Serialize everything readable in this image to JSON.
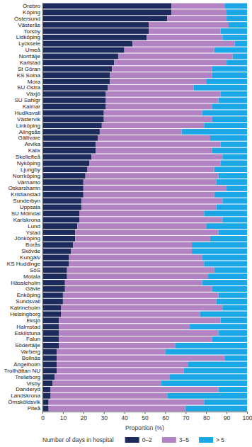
{
  "chart_data": {
    "type": "bar",
    "orientation": "horizontal",
    "stacked": true,
    "grid": false,
    "legend": "bottom",
    "x_label": "Proportion (%)",
    "legend_title": "Number of days in hospital",
    "xlim": [
      0,
      100
    ],
    "xticks": [
      0,
      10,
      20,
      30,
      40,
      50,
      60,
      70,
      80,
      90,
      100
    ],
    "categories": [
      "Örebro",
      "Köping",
      "Östersund",
      "Västerås",
      "Torsby",
      "Lidköping",
      "Lycksele",
      "Umeå",
      "Norrtälje",
      "Karlstad",
      "St Göran",
      "KS Solna",
      "Mora",
      "SU Östra",
      "Växjö",
      "SU Sahlgr",
      "Kalmar",
      "Hudiksvall",
      "Västervik",
      "Linköping",
      "Alingsås",
      "Gällivare",
      "Arvika",
      "Kalix",
      "Skellefteå",
      "Nyköping",
      "Ljungby",
      "Norrköping",
      "Värnamo",
      "Oskarshamn",
      "Kristianstad",
      "Sunderbyn",
      "Uppsala",
      "SU Mölndal",
      "Karlskrona",
      "Lund",
      "Ystad",
      "Jönköping",
      "Borås",
      "Skövde",
      "Kungälv",
      "KS Huddinge",
      "SöS",
      "Motala",
      "Hässleholm",
      "Gävle",
      "Enköping",
      "Sundsvall",
      "Katrineholm",
      "Helsingborg",
      "Eksjö",
      "Halmstad",
      "Eskilstuna",
      "Falun",
      "Södertälje",
      "Varberg",
      "Bollnäs",
      "Ängelholm",
      "Trollhättan NU",
      "Trelleborg",
      "Visby",
      "Danderyd",
      "Landskrona",
      "Örnsköldsvik",
      "Piteå"
    ],
    "series": [
      {
        "name": "0–2",
        "color": "#1d2b5c",
        "values": [
          63,
          63,
          61,
          52,
          52,
          51,
          44,
          40,
          37,
          35,
          34,
          33,
          33,
          32,
          31,
          31,
          31,
          30,
          30,
          29,
          28,
          27,
          26,
          26,
          24,
          23,
          22,
          21,
          20,
          20,
          20,
          19,
          19,
          18,
          18,
          17,
          16,
          16,
          15,
          14,
          13,
          13,
          12,
          12,
          11,
          11,
          10,
          10,
          9,
          9,
          8,
          8,
          8,
          8,
          8,
          7,
          7,
          7,
          7,
          6,
          5,
          4,
          4,
          3,
          3
        ]
      },
      {
        "name": "3–5",
        "color": "#b283c3",
        "values": [
          26,
          27,
          29,
          39,
          35,
          37,
          50,
          44,
          56,
          55,
          49,
          50,
          47,
          42,
          56,
          55,
          52,
          48,
          53,
          50,
          40,
          55,
          61,
          57,
          64,
          64,
          62,
          65,
          65,
          70,
          64,
          69,
          66,
          61,
          70,
          63,
          70,
          66,
          58,
          59,
          65,
          66,
          72,
          69,
          67,
          72,
          76,
          75,
          79,
          68,
          79,
          64,
          78,
          75,
          57,
          53,
          82,
          64,
          62,
          56,
          53,
          82,
          57,
          76,
          67
        ]
      },
      {
        "name": "> 5",
        "color": "#1ba6e6",
        "values": [
          11,
          10,
          10,
          9,
          13,
          12,
          6,
          16,
          7,
          10,
          17,
          17,
          20,
          26,
          13,
          14,
          17,
          22,
          17,
          21,
          32,
          18,
          13,
          17,
          12,
          13,
          16,
          14,
          15,
          10,
          16,
          12,
          15,
          21,
          12,
          20,
          14,
          18,
          27,
          27,
          22,
          21,
          16,
          19,
          22,
          17,
          14,
          15,
          12,
          23,
          13,
          28,
          14,
          17,
          35,
          40,
          11,
          29,
          31,
          38,
          42,
          14,
          39,
          21,
          30
        ]
      }
    ]
  }
}
